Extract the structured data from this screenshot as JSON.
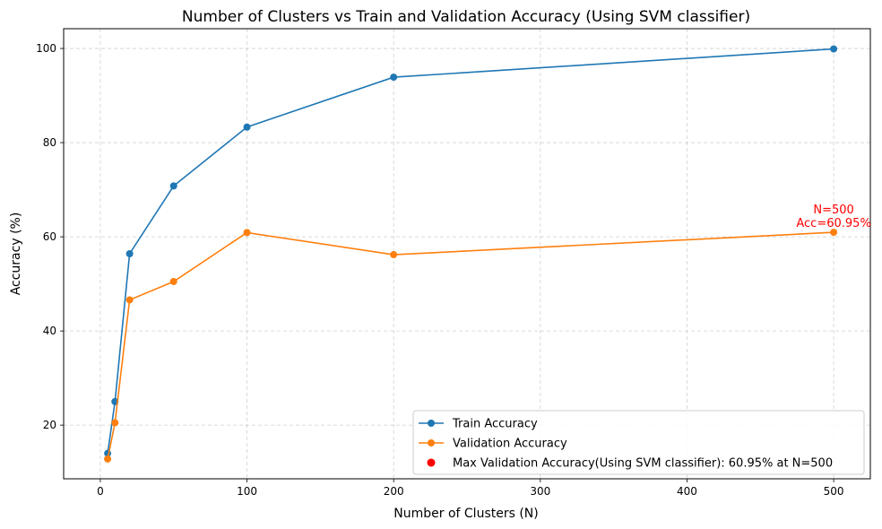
{
  "chart_data": {
    "type": "line",
    "title": "Number of Clusters vs Train and Validation Accuracy (Using SVM classifier)",
    "xlabel": "Number of Clusters (N)",
    "ylabel": "Accuracy (%)",
    "xlim": [
      -25,
      525
    ],
    "ylim": [
      8.6,
      104.2
    ],
    "xticks": [
      0,
      100,
      200,
      300,
      400,
      500
    ],
    "yticks": [
      20,
      40,
      60,
      80,
      100
    ],
    "grid": true,
    "legend_position": "bottom-right",
    "x": [
      5,
      10,
      20,
      50,
      100,
      200,
      500
    ],
    "series": [
      {
        "name": "Train Accuracy",
        "color": "#1f77b4",
        "values": [
          14.0,
          25.0,
          56.4,
          70.8,
          83.3,
          93.9,
          99.9
        ]
      },
      {
        "name": "Validation Accuracy",
        "color": "#ff7f0e",
        "values": [
          12.8,
          20.5,
          46.6,
          50.5,
          60.9,
          56.2,
          60.95
        ]
      }
    ],
    "highlight": {
      "name": "Max Validation Accuracy(Using SVM classifier): 60.95% at N=500",
      "color": "#ff0000",
      "x": 500,
      "y": 60.95,
      "annotation_lines": [
        "N=500",
        "Acc=60.95%"
      ]
    }
  }
}
